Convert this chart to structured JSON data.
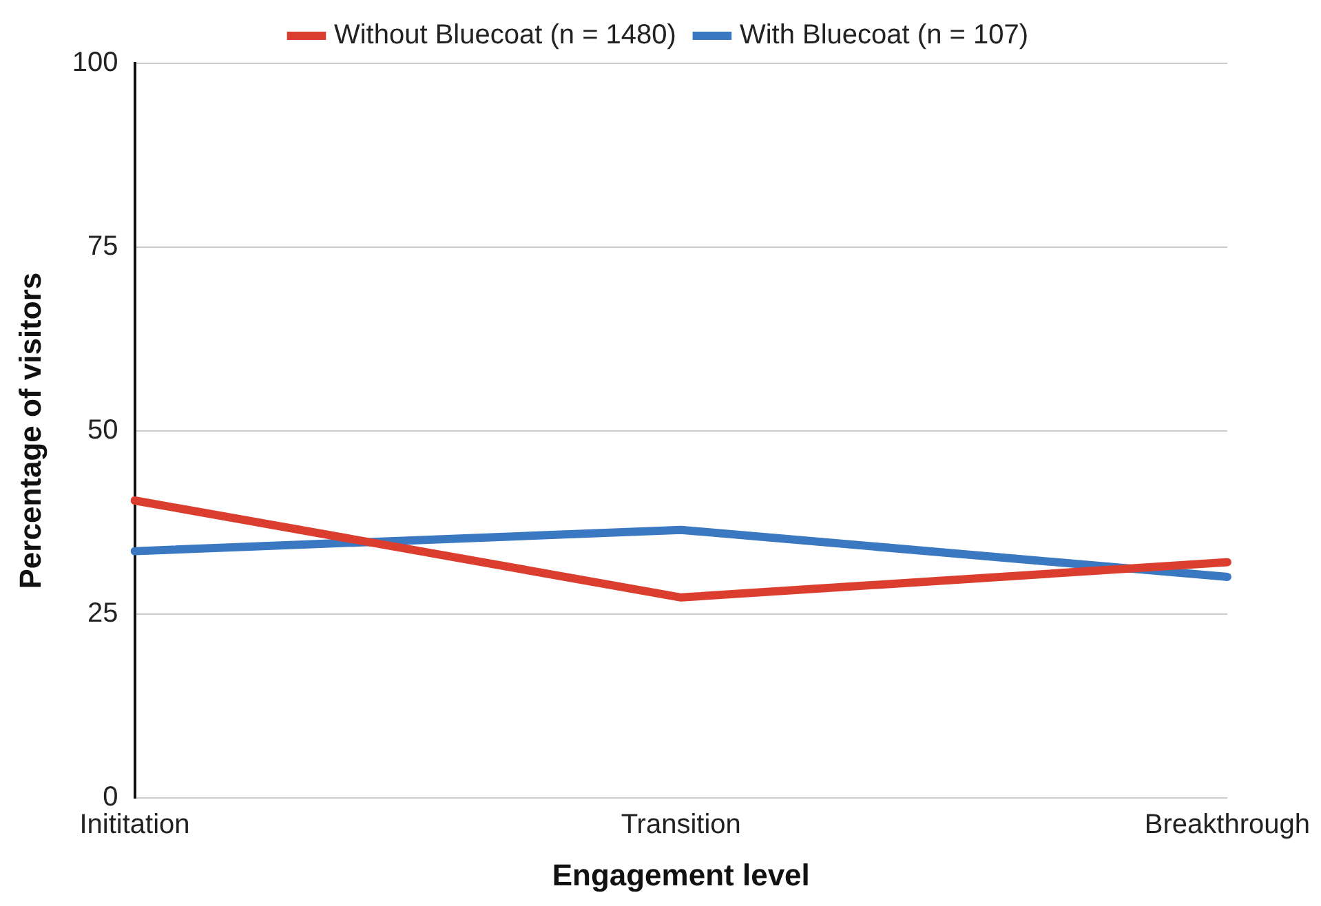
{
  "chart_data": {
    "type": "line",
    "xlabel": "Engagement level",
    "ylabel": "Percentage of visitors",
    "categories": [
      "Inititation",
      "Transition",
      "Breakthrough"
    ],
    "series": [
      {
        "name": "Without Bluecoat (n = 1480)",
        "color": "#db3e2e",
        "values": [
          40.5,
          27.3,
          32.1
        ]
      },
      {
        "name": "With Bluecoat (n = 107)",
        "color": "#3b78c2",
        "values": [
          33.6,
          36.5,
          30.1
        ]
      }
    ],
    "ylim": [
      0,
      100
    ],
    "yticks": [
      0,
      25,
      50,
      75,
      100
    ],
    "grid": "y",
    "legend": "top",
    "marker": "none",
    "line_style": "solid"
  }
}
